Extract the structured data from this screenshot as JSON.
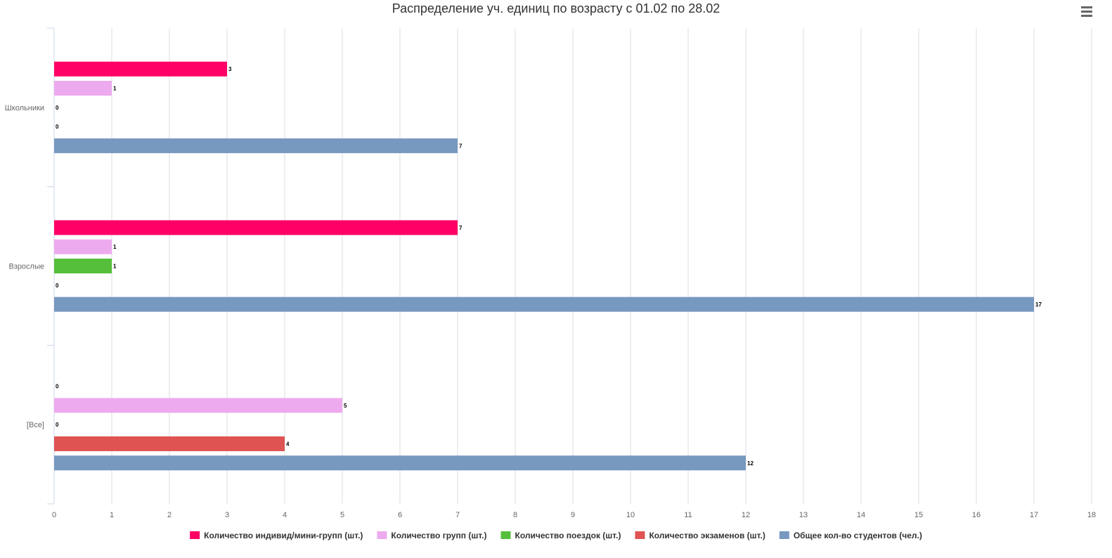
{
  "title": "Распределение уч. единиц по возрасту с 01.02 по 28.02",
  "menu": {
    "icon": "hamburger-menu-icon"
  },
  "chart_data": {
    "type": "bar",
    "orientation": "horizontal",
    "title": "Распределение уч. единиц по возрасту с 01.02 по 28.02",
    "categories": [
      "Школьники",
      "Взрослые",
      "[Все]"
    ],
    "x_ticks": [
      "0",
      "1",
      "2",
      "3",
      "4",
      "5",
      "6",
      "7",
      "8",
      "9",
      "10",
      "11",
      "12",
      "13",
      "14",
      "15",
      "16",
      "17",
      "18"
    ],
    "xlim": [
      0,
      18
    ],
    "grid": "vertical",
    "legend_position": "bottom",
    "data_labels": true,
    "series": [
      {
        "name": "Количество индивид/мини-групп (шт.)",
        "color": "#ff0066",
        "values": [
          3,
          7,
          0
        ]
      },
      {
        "name": "Количество групп (шт.)",
        "color": "#eeaaee",
        "values": [
          1,
          1,
          5
        ]
      },
      {
        "name": "Количество поездок (шт.)",
        "color": "#55bf3b",
        "values": [
          0,
          1,
          0
        ]
      },
      {
        "name": "Количество экзаменов (шт.)",
        "color": "#df5353",
        "values": [
          0,
          0,
          4
        ]
      },
      {
        "name": "Общее кол-во студентов (чел.)",
        "color": "#7798bf",
        "values": [
          7,
          17,
          12
        ]
      }
    ]
  }
}
